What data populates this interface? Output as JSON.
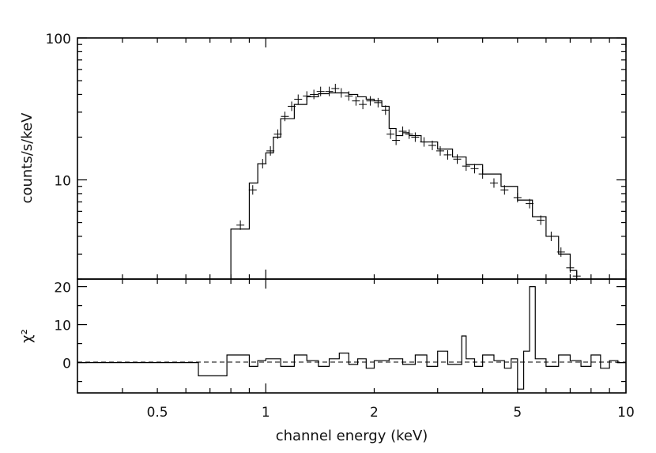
{
  "chart_data": [
    {
      "type": "line",
      "panel": "spectrum",
      "xlabel": "",
      "ylabel": "counts/s/keV",
      "xscale": "log",
      "yscale": "log",
      "xlim": [
        0.3,
        10
      ],
      "ylim": [
        2,
        100
      ],
      "y_tick_labels": [
        "100",
        "10"
      ],
      "grid": false,
      "series": [
        {
          "style": "histogram-model",
          "x": [
            0.8,
            0.9,
            0.95,
            1.0,
            1.05,
            1.1,
            1.2,
            1.3,
            1.4,
            1.5,
            1.6,
            1.7,
            1.8,
            1.9,
            2.0,
            2.1,
            2.2,
            2.3,
            2.4,
            2.5,
            2.7,
            3.0,
            3.3,
            3.6,
            4.0,
            4.5,
            5.0,
            5.5,
            6.0,
            6.5,
            7.0,
            7.3
          ],
          "y": [
            4.5,
            9.5,
            13.0,
            15.5,
            20.0,
            27.0,
            34.0,
            38.5,
            40.5,
            41.0,
            41.0,
            40.0,
            38.5,
            37.0,
            36.0,
            33.0,
            23.0,
            20.5,
            21.5,
            20.5,
            18.5,
            16.5,
            14.5,
            12.8,
            11.0,
            9.0,
            7.2,
            5.5,
            4.0,
            3.0,
            2.3,
            2.0
          ]
        },
        {
          "style": "data-with-errorbars",
          "x": [
            0.85,
            0.92,
            0.98,
            1.03,
            1.08,
            1.13,
            1.18,
            1.23,
            1.3,
            1.36,
            1.42,
            1.5,
            1.56,
            1.62,
            1.7,
            1.78,
            1.86,
            1.95,
            2.05,
            2.15,
            2.22,
            2.3,
            2.4,
            2.5,
            2.6,
            2.75,
            2.9,
            3.05,
            3.2,
            3.4,
            3.6,
            3.8,
            4.0,
            4.3,
            4.6,
            5.0,
            5.4,
            5.8,
            6.2,
            6.6,
            7.0,
            7.3
          ],
          "y": [
            4.8,
            8.5,
            13.0,
            16.0,
            21.0,
            28.0,
            33.0,
            37.0,
            39.0,
            40.0,
            42.0,
            42.0,
            44.0,
            41.0,
            39.0,
            36.0,
            34.0,
            36.0,
            35.0,
            31.0,
            21.0,
            19.0,
            22.0,
            21.0,
            20.0,
            18.5,
            17.5,
            16.0,
            15.0,
            14.0,
            12.5,
            12.0,
            11.0,
            9.5,
            8.5,
            7.5,
            6.8,
            5.2,
            4.0,
            3.1,
            2.4,
            2.1
          ]
        }
      ]
    },
    {
      "type": "line",
      "panel": "residuals",
      "xlabel": "channel energy (keV)",
      "ylabel": "χ²",
      "xscale": "log",
      "xlim": [
        0.3,
        10
      ],
      "ylim": [
        -8,
        22
      ],
      "x_tick_labels": [
        "0.5",
        "1",
        "2",
        "5",
        "10"
      ],
      "y_tick_labels": [
        "20",
        "10",
        "0"
      ],
      "grid": false,
      "series": [
        {
          "style": "histogram",
          "x": [
            0.3,
            0.65,
            0.78,
            0.9,
            0.95,
            1.0,
            1.1,
            1.2,
            1.3,
            1.4,
            1.5,
            1.6,
            1.7,
            1.8,
            1.9,
            2.0,
            2.2,
            2.4,
            2.6,
            2.8,
            3.0,
            3.2,
            3.5,
            3.6,
            3.8,
            4.0,
            4.3,
            4.6,
            4.8,
            5.0,
            5.2,
            5.4,
            5.6,
            6.0,
            6.5,
            7.0,
            7.5,
            8.0,
            8.5,
            9.0,
            9.5
          ],
          "y": [
            0,
            -3.5,
            2,
            -1,
            0.5,
            1,
            -1,
            2,
            0.5,
            -1,
            1,
            2.5,
            -0.5,
            1,
            -1.5,
            0.5,
            1,
            -0.5,
            2,
            -1,
            3,
            -0.5,
            7,
            1,
            -1,
            2,
            0.5,
            -1.5,
            1,
            -7,
            3,
            20,
            1,
            -1,
            2,
            0.5,
            -1,
            2,
            -1.5,
            0.5,
            0
          ]
        }
      ]
    }
  ]
}
